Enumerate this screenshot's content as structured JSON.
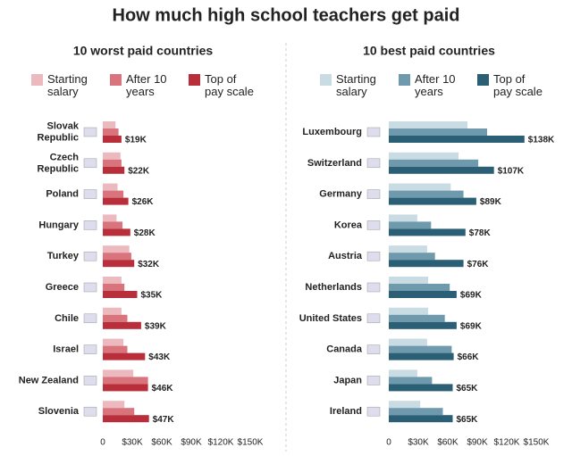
{
  "title": "How much high school teachers get paid",
  "chart_data": [
    {
      "type": "bar",
      "orientation": "horizontal",
      "title": "10 worst paid countries",
      "categories": [
        "Slovak Republic",
        "Czech Republic",
        "Poland",
        "Hungary",
        "Turkey",
        "Greece",
        "Chile",
        "Israel",
        "New Zealand",
        "Slovenia"
      ],
      "series": [
        {
          "name": "Starting salary",
          "color": "#ecb9be",
          "values": [
            13000,
            18000,
            15000,
            14000,
            27000,
            19000,
            19000,
            21000,
            31000,
            22000
          ]
        },
        {
          "name": "After 10 years",
          "color": "#d9737c",
          "values": [
            16000,
            19000,
            21000,
            20000,
            29000,
            22000,
            25000,
            25000,
            46000,
            32000
          ]
        },
        {
          "name": "Top of pay scale",
          "color": "#b82e3a",
          "values": [
            19000,
            22000,
            26000,
            28000,
            32000,
            35000,
            39000,
            43000,
            46000,
            47000
          ],
          "value_labels": [
            "$19K",
            "$22K",
            "$26K",
            "$28K",
            "$32K",
            "$35K",
            "$39K",
            "$43K",
            "$46K",
            "$47K"
          ]
        }
      ],
      "xlim": [
        0,
        150000
      ],
      "xticks": [
        0,
        {
          "value": 30000,
          "label": "$30K"
        },
        {
          "value": 60000,
          "label": "$60K"
        },
        {
          "value": 90000,
          "label": "$90K"
        },
        {
          "value": 120000,
          "label": "$120K"
        },
        {
          "value": 150000,
          "label": "$150K"
        }
      ]
    },
    {
      "type": "bar",
      "orientation": "horizontal",
      "title": "10 best paid countries",
      "categories": [
        "Luxembourg",
        "Switzerland",
        "Germany",
        "Korea",
        "Austria",
        "Netherlands",
        "United States",
        "Canada",
        "Japan",
        "Ireland"
      ],
      "series": [
        {
          "name": "Starting salary",
          "color": "#c9dbe3",
          "values": [
            80000,
            71000,
            63000,
            29000,
            39000,
            40000,
            40000,
            39000,
            29000,
            32000
          ]
        },
        {
          "name": "After 10 years",
          "color": "#6f99ad",
          "values": [
            100000,
            91000,
            76000,
            43000,
            47000,
            62000,
            57000,
            64000,
            44000,
            55000
          ]
        },
        {
          "name": "Top of pay scale",
          "color": "#2a5f76",
          "values": [
            138000,
            107000,
            89000,
            78000,
            76000,
            69000,
            69000,
            66000,
            65000,
            65000
          ],
          "value_labels": [
            "$138K",
            "$107K",
            "$89K",
            "$78K",
            "$76K",
            "$69K",
            "$69K",
            "$66K",
            "$65K",
            "$65K"
          ]
        }
      ],
      "xlim": [
        0,
        150000
      ],
      "xticks": [
        0,
        {
          "value": 30000,
          "label": "$30K"
        },
        {
          "value": 60000,
          "label": "$60K"
        },
        {
          "value": 90000,
          "label": "$90K"
        },
        {
          "value": 120000,
          "label": "$120K"
        },
        {
          "value": 150000,
          "label": "$150K"
        }
      ]
    }
  ]
}
